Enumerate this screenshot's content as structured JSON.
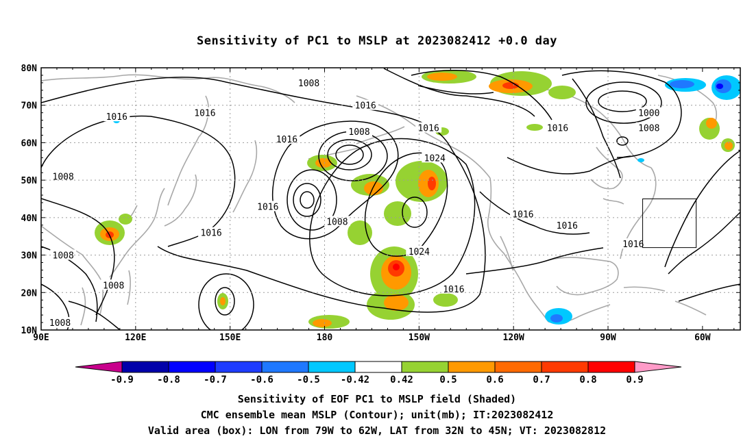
{
  "title": "Sensitivity of PC1 to MSLP at 2023082412 +0.0 day",
  "axes": {
    "lat_labels": [
      "80N",
      "70N",
      "60N",
      "50N",
      "40N",
      "30N",
      "20N",
      "10N"
    ],
    "lon_labels": [
      "90E",
      "120E",
      "150E",
      "180",
      "150W",
      "120W",
      "90W",
      "60W"
    ]
  },
  "contour_labels": [
    {
      "text": "1016",
      "lon": 114,
      "lat": 67
    },
    {
      "text": "1016",
      "lon": 142,
      "lat": 68
    },
    {
      "text": "1016",
      "lon": 168,
      "lat": 61
    },
    {
      "text": "1008",
      "lon": 97,
      "lat": 51
    },
    {
      "text": "1016",
      "lon": 162,
      "lat": 43
    },
    {
      "text": "1016",
      "lon": 144,
      "lat": 36
    },
    {
      "text": "1008",
      "lon": 97,
      "lat": 30
    },
    {
      "text": "1008",
      "lon": 113,
      "lat": 22
    },
    {
      "text": "1008",
      "lon": 96,
      "lat": 12
    },
    {
      "text": "1008",
      "lon": 184,
      "lat": 39
    },
    {
      "text": "1008",
      "lon": 191,
      "lat": 63
    },
    {
      "text": "1016",
      "lon": 193,
      "lat": 70
    },
    {
      "text": "1008",
      "lon": 175,
      "lat": 76
    },
    {
      "text": "1016",
      "lon": 213,
      "lat": 64
    },
    {
      "text": "1024",
      "lon": 215,
      "lat": 56
    },
    {
      "text": "1024",
      "lon": 210,
      "lat": 31
    },
    {
      "text": "1016",
      "lon": 221,
      "lat": 21
    },
    {
      "text": "1016",
      "lon": 243,
      "lat": 41
    },
    {
      "text": "1016",
      "lon": 254,
      "lat": 64
    },
    {
      "text": "1016",
      "lon": 257,
      "lat": 38
    },
    {
      "text": "1000",
      "lon": 283,
      "lat": 68
    },
    {
      "text": "1008",
      "lon": 283,
      "lat": 64
    },
    {
      "text": "1016",
      "lon": 278,
      "lat": 33
    }
  ],
  "valid_box": {
    "lon_min": -79,
    "lon_max": -62,
    "lat_min": 32,
    "lat_max": 45
  },
  "colorbar": {
    "labels": [
      "-0.9",
      "-0.8",
      "-0.7",
      "-0.6",
      "-0.5",
      "-0.42",
      "0.42",
      "0.5",
      "0.6",
      "0.7",
      "0.8",
      "0.9"
    ],
    "colors": [
      "#0000aa",
      "#0000ff",
      "#1e3cff",
      "#1f78ff",
      "#00c8ff",
      "#ffffff",
      "#96d232",
      "#ff9900",
      "#ff6a00",
      "#ff3a00",
      "#ff0000"
    ],
    "under_color": "#c8008c",
    "over_color": "#ff9bc8"
  },
  "captions": [
    "Sensitivity of EOF PC1 to MSLP field (Shaded)",
    "CMC ensemble mean MSLP (Contour); unit(mb); IT:2023082412",
    "Valid area (box): LON from 79W to 62W, LAT from 32N to 45N; VT: 2023082812"
  ]
}
